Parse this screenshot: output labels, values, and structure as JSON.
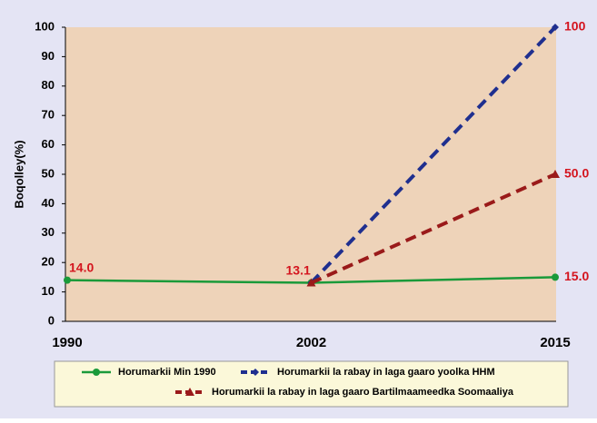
{
  "chart_data": {
    "type": "line",
    "y_label": "Boqolley(%)",
    "categories": [
      "1990",
      "2002",
      "2015"
    ],
    "ylim": [
      0,
      100
    ],
    "yticks": [
      0,
      10,
      20,
      30,
      40,
      50,
      60,
      70,
      80,
      90,
      100
    ],
    "series": [
      {
        "name": "Horumarkii Min 1990",
        "color": "#1a9a3a",
        "marker": "circle",
        "dash": false,
        "values": [
          14.0,
          13.1,
          15.0
        ],
        "value_labels": [
          "14.0",
          "13.1",
          "15.0"
        ]
      },
      {
        "name": "Horumarkii la rabay in laga gaaro yoolka  HHM",
        "color": "#1f2f8f",
        "marker": "diamond",
        "dash": true,
        "values": [
          null,
          13.1,
          100
        ],
        "value_labels": [
          null,
          null,
          "100"
        ]
      },
      {
        "name": "Horumarkii la rabay in laga gaaro Bartilmaameedka Soomaaliya",
        "color": "#9a1a1a",
        "marker": "triangle",
        "dash": true,
        "values": [
          null,
          13.1,
          50.0
        ],
        "value_labels": [
          null,
          null,
          "50.0"
        ]
      }
    ]
  }
}
